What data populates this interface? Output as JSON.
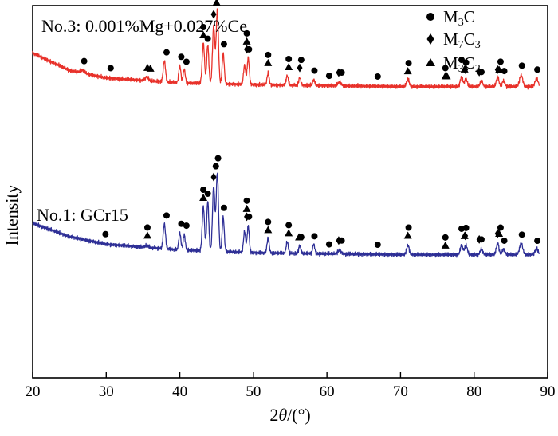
{
  "chart_data": {
    "type": "line",
    "xlabel_prefix": "2",
    "xlabel_var": "θ",
    "xlabel_suffix": "/(°)",
    "ylabel": "Intensity",
    "xlim": [
      20,
      90
    ],
    "xticks": [
      20,
      30,
      40,
      50,
      60,
      70,
      80,
      90
    ],
    "y_tick_labels": false,
    "colors": {
      "red": "#e8312a",
      "blue": "#2e2f96",
      "axis": "#000000"
    },
    "legend": {
      "position": "top-right",
      "items": [
        {
          "marker": "circle",
          "base": "M",
          "s1": "3",
          "mid": "C",
          "s2": ""
        },
        {
          "marker": "diamond",
          "base": "M",
          "s1": "7",
          "mid": "C",
          "s2": "3"
        },
        {
          "marker": "triangle",
          "base": "M",
          "s1": "3",
          "mid": "C",
          "s2": "2"
        }
      ]
    },
    "series": [
      {
        "name": "No.3: 0.001%Mg+0.027%Ce",
        "color": "#e8312a",
        "baseline": [
          [
            20,
            46
          ],
          [
            25,
            37
          ],
          [
            30,
            33
          ],
          [
            40,
            30.5
          ],
          [
            50,
            29.5
          ],
          [
            70,
            28.5
          ],
          [
            90,
            28.5
          ]
        ],
        "peaks": [
          [
            26.8,
            1.5,
            0.4
          ],
          [
            35.5,
            2,
            0.3
          ],
          [
            37.9,
            11,
            0.22
          ],
          [
            40.0,
            9,
            0.2
          ],
          [
            40.6,
            7,
            0.2
          ],
          [
            43.2,
            21,
            0.22
          ],
          [
            43.8,
            20,
            0.2
          ],
          [
            44.6,
            30,
            0.22
          ],
          [
            45.1,
            38,
            0.22
          ],
          [
            45.9,
            16,
            0.2
          ],
          [
            48.8,
            10,
            0.2
          ],
          [
            49.3,
            14,
            0.2
          ],
          [
            52.0,
            6,
            0.2
          ],
          [
            54.6,
            5,
            0.2
          ],
          [
            56.3,
            4,
            0.2
          ],
          [
            58.2,
            3,
            0.2
          ],
          [
            61.7,
            2,
            0.3
          ],
          [
            71.0,
            4,
            0.25
          ],
          [
            78.3,
            5,
            0.25
          ],
          [
            78.9,
            4,
            0.25
          ],
          [
            81.0,
            3,
            0.25
          ],
          [
            83.2,
            5,
            0.25
          ],
          [
            84.0,
            3,
            0.25
          ],
          [
            86.4,
            6,
            0.3
          ],
          [
            88.5,
            4,
            0.3
          ]
        ],
        "markers": [
          [
            "circle",
            27.0
          ],
          [
            "circle",
            30.6
          ],
          [
            "triangle",
            35.6
          ],
          [
            "triangle",
            36.0
          ],
          [
            "circle",
            38.2
          ],
          [
            "circle",
            40.2
          ],
          [
            "circle",
            40.9
          ],
          [
            "triangle",
            43.2
          ],
          [
            "circle",
            43.2
          ],
          [
            "circle",
            43.8
          ],
          [
            "diamond",
            44.6
          ],
          [
            "triangle",
            45.0
          ],
          [
            "circle",
            45.2
          ],
          [
            "circle",
            46.0
          ],
          [
            "diamond",
            49.1
          ],
          [
            "triangle",
            49.1
          ],
          [
            "circle",
            49.1
          ],
          [
            "circle",
            49.4
          ],
          [
            "triangle",
            52.0
          ],
          [
            "circle",
            52.0
          ],
          [
            "triangle",
            54.8
          ],
          [
            "circle",
            54.8
          ],
          [
            "diamond",
            56.3
          ],
          [
            "circle",
            56.5
          ],
          [
            "circle",
            58.3
          ],
          [
            "circle",
            60.3
          ],
          [
            "diamond",
            61.6
          ],
          [
            "circle",
            62.0
          ],
          [
            "circle",
            66.9
          ],
          [
            "triangle",
            71.0
          ],
          [
            "circle",
            71.1
          ],
          [
            "triangle",
            76.1
          ],
          [
            "triangle",
            76.3
          ],
          [
            "circle",
            76.1
          ],
          [
            "triangle",
            78.7
          ],
          [
            "diamond",
            78.8
          ],
          [
            "circle",
            78.3
          ],
          [
            "circle",
            78.9
          ],
          [
            "diamond",
            80.7
          ],
          [
            "circle",
            81.0
          ],
          [
            "triangle",
            83.4
          ],
          [
            "diamond",
            83.2
          ],
          [
            "circle",
            83.6
          ],
          [
            "circle",
            84.1
          ],
          [
            "circle",
            86.5
          ],
          [
            "circle",
            88.6
          ]
        ]
      },
      {
        "name": "No.1: GCr15",
        "color": "#2e2f96",
        "baseline": [
          [
            20,
            45
          ],
          [
            25,
            38
          ],
          [
            30,
            34
          ],
          [
            40,
            31
          ],
          [
            50,
            29.5
          ],
          [
            70,
            28.5
          ],
          [
            90,
            28.5
          ]
        ],
        "peaks": [
          [
            35.5,
            1,
            0.3
          ],
          [
            37.9,
            13,
            0.22
          ],
          [
            40.0,
            9,
            0.2
          ],
          [
            40.6,
            8,
            0.2
          ],
          [
            43.2,
            23,
            0.22
          ],
          [
            43.8,
            26,
            0.2
          ],
          [
            44.6,
            34,
            0.22
          ],
          [
            45.1,
            41,
            0.22
          ],
          [
            45.9,
            18,
            0.2
          ],
          [
            48.8,
            11,
            0.2
          ],
          [
            49.3,
            14,
            0.2
          ],
          [
            52.0,
            8,
            0.2
          ],
          [
            54.6,
            6,
            0.2
          ],
          [
            56.3,
            4,
            0.2
          ],
          [
            58.2,
            5,
            0.2
          ],
          [
            61.7,
            2,
            0.3
          ],
          [
            71.0,
            5,
            0.25
          ],
          [
            78.3,
            5,
            0.25
          ],
          [
            78.9,
            5,
            0.25
          ],
          [
            81.0,
            3,
            0.25
          ],
          [
            83.2,
            6,
            0.25
          ],
          [
            84.0,
            3,
            0.25
          ],
          [
            86.4,
            6,
            0.3
          ],
          [
            88.5,
            3,
            0.3
          ]
        ],
        "markers": [
          [
            "circle",
            29.9
          ],
          [
            "triangle",
            35.6
          ],
          [
            "circle",
            35.6
          ],
          [
            "circle",
            38.2
          ],
          [
            "circle",
            40.2
          ],
          [
            "circle",
            40.9
          ],
          [
            "triangle",
            43.2
          ],
          [
            "circle",
            43.2
          ],
          [
            "circle",
            43.8
          ],
          [
            "diamond",
            44.6
          ],
          [
            "circle",
            44.9
          ],
          [
            "circle",
            45.2
          ],
          [
            "circle",
            46.0
          ],
          [
            "diamond",
            49.1
          ],
          [
            "triangle",
            49.1
          ],
          [
            "circle",
            49.1
          ],
          [
            "circle",
            49.4
          ],
          [
            "triangle",
            52.0
          ],
          [
            "circle",
            52.0
          ],
          [
            "triangle",
            54.8
          ],
          [
            "circle",
            54.8
          ],
          [
            "triangle",
            56.2
          ],
          [
            "circle",
            56.5
          ],
          [
            "circle",
            58.3
          ],
          [
            "circle",
            60.3
          ],
          [
            "diamond",
            61.6
          ],
          [
            "circle",
            62.0
          ],
          [
            "circle",
            66.9
          ],
          [
            "triangle",
            71.0
          ],
          [
            "circle",
            71.1
          ],
          [
            "triangle",
            76.1
          ],
          [
            "circle",
            76.1
          ],
          [
            "triangle",
            78.7
          ],
          [
            "diamond",
            78.8
          ],
          [
            "circle",
            78.3
          ],
          [
            "circle",
            78.9
          ],
          [
            "diamond",
            80.7
          ],
          [
            "circle",
            81.0
          ],
          [
            "triangle",
            83.4
          ],
          [
            "diamond",
            83.2
          ],
          [
            "circle",
            83.6
          ],
          [
            "circle",
            84.1
          ],
          [
            "circle",
            86.5
          ],
          [
            "circle",
            88.6
          ]
        ]
      }
    ]
  }
}
